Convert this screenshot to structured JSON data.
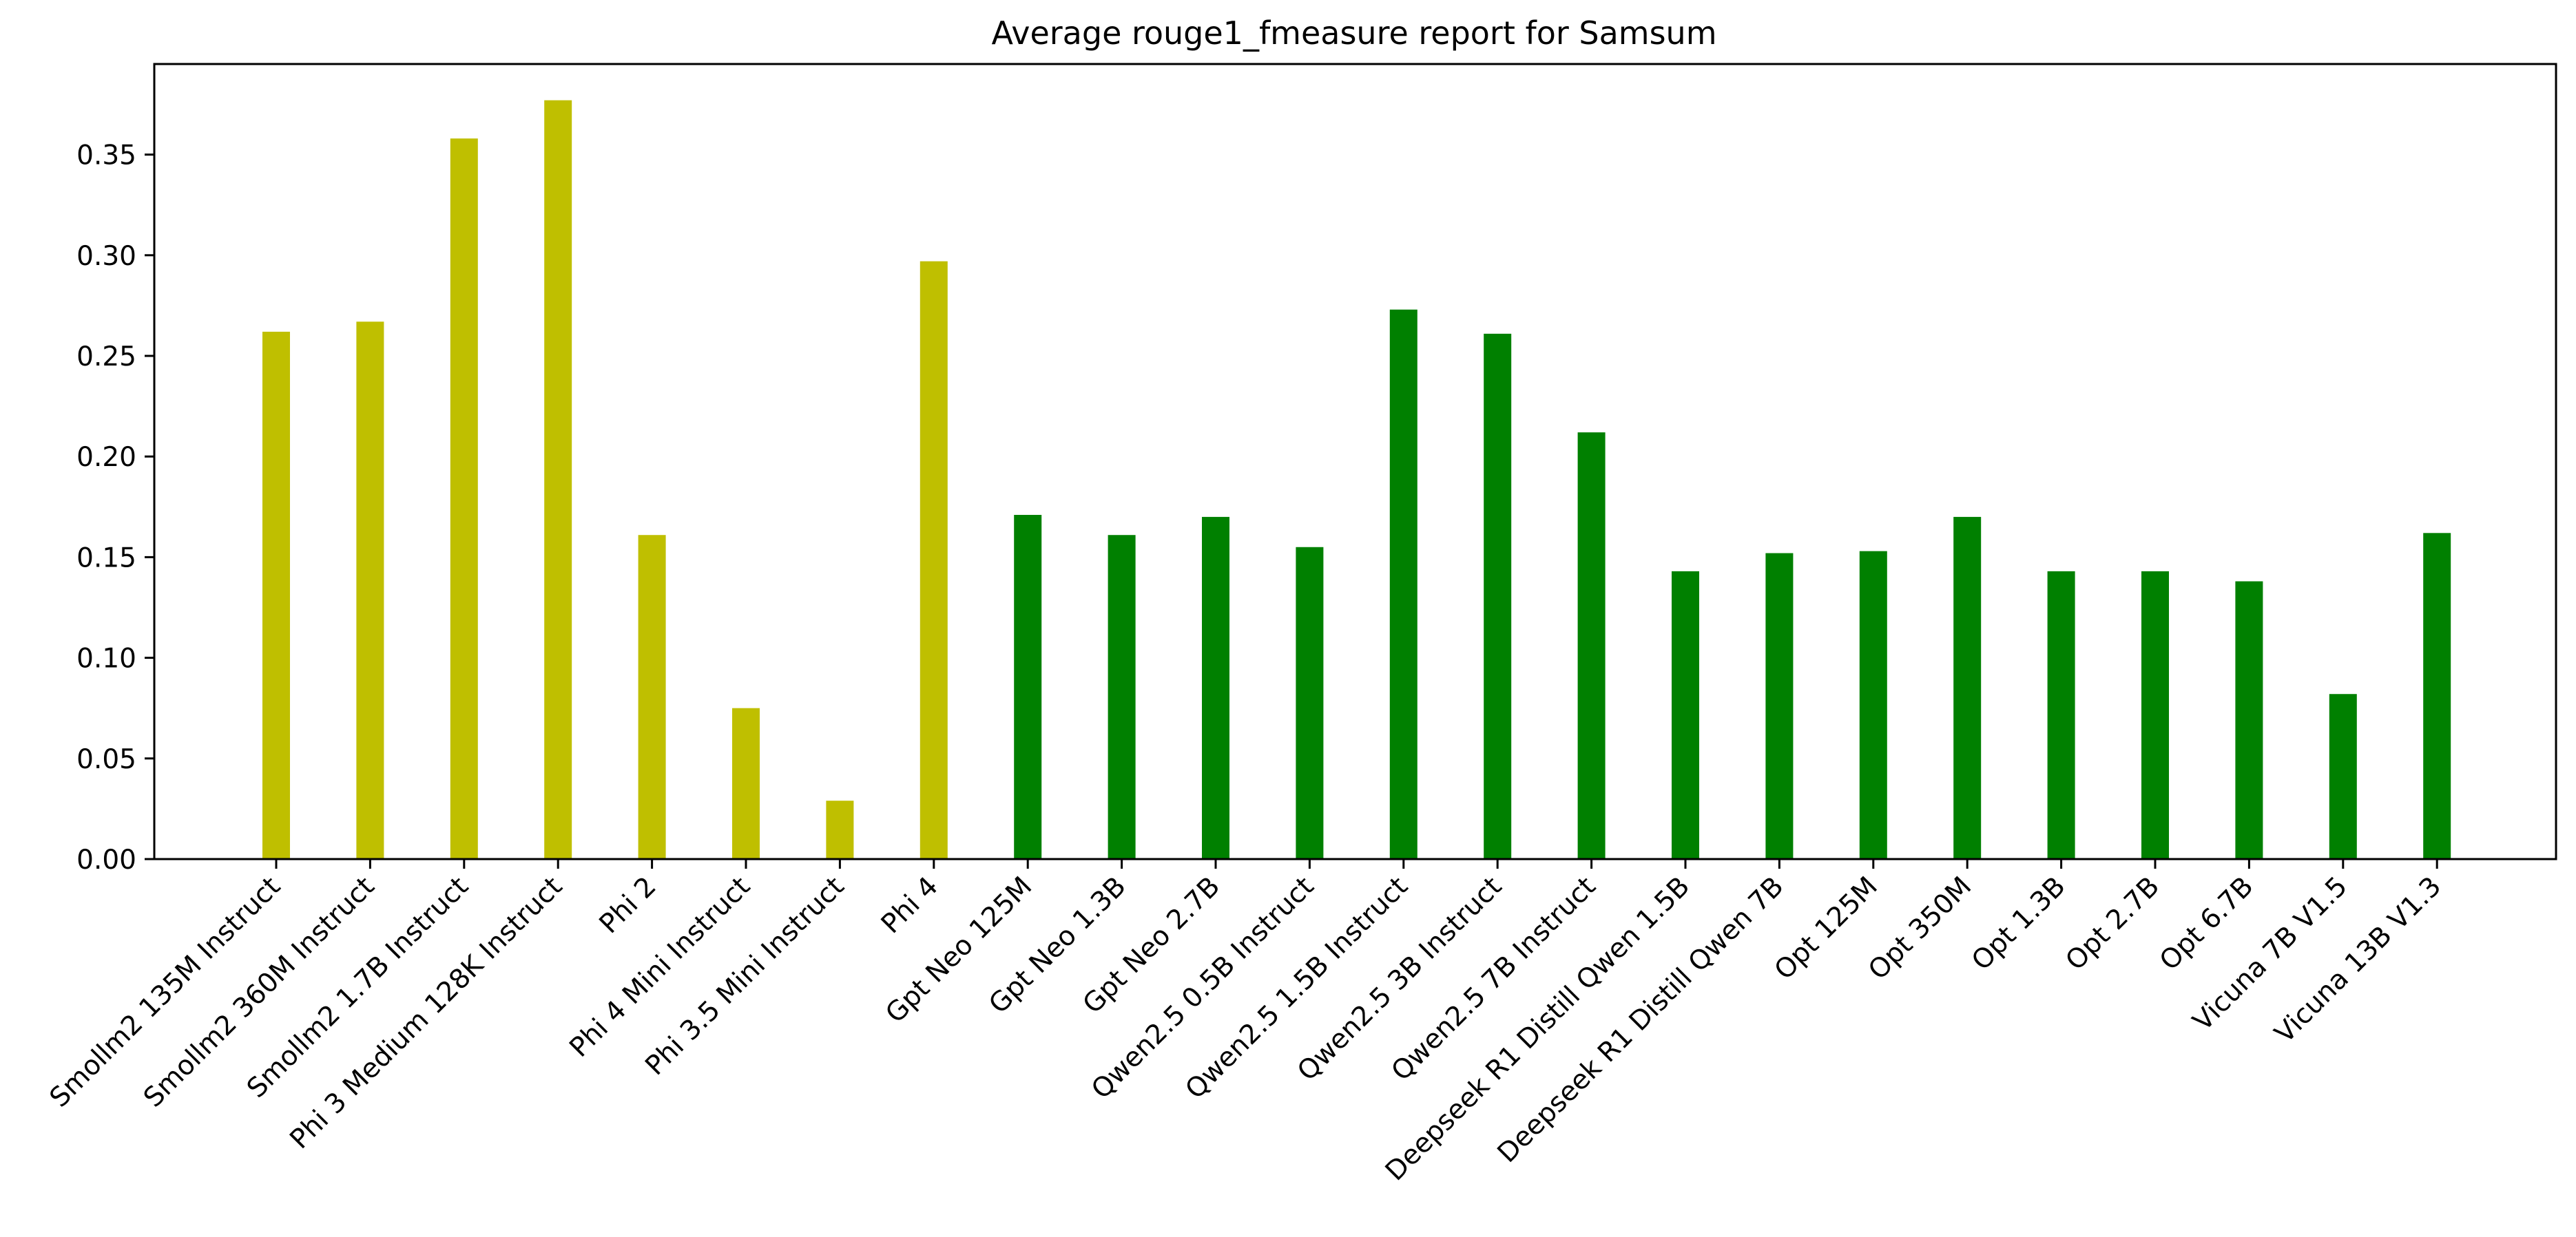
{
  "chart_data": {
    "type": "bar",
    "title": "Average rouge1_fmeasure report for Samsum",
    "xlabel": "",
    "ylabel": "",
    "ylim": [
      0,
      0.395
    ],
    "yticks": [
      "0.00",
      "0.05",
      "0.10",
      "0.15",
      "0.20",
      "0.25",
      "0.30",
      "0.35"
    ],
    "grid": false,
    "colors": {
      "group_a": "#bfbf00",
      "group_b": "#008000"
    },
    "categories": [
      "Smollm2 135M Instruct",
      "Smollm2 360M Instruct",
      "Smollm2 1.7B Instruct",
      "Phi 3 Medium 128K Instruct",
      "Phi 2",
      "Phi 4 Mini Instruct",
      "Phi 3.5 Mini Instruct",
      "Phi 4",
      "Gpt Neo 125M",
      "Gpt Neo 1.3B",
      "Gpt Neo 2.7B",
      "Qwen2.5 0.5B Instruct",
      "Qwen2.5 1.5B Instruct",
      "Qwen2.5 3B Instruct",
      "Qwen2.5 7B Instruct",
      "Deepseek R1 Distill Qwen 1.5B",
      "Deepseek R1 Distill Qwen 7B",
      "Opt 125M",
      "Opt 350M",
      "Opt 1.3B",
      "Opt 2.7B",
      "Opt 6.7B",
      "Vicuna 7B V1.5",
      "Vicuna 13B V1.3"
    ],
    "values": [
      0.262,
      0.267,
      0.358,
      0.377,
      0.161,
      0.075,
      0.029,
      0.297,
      0.171,
      0.161,
      0.17,
      0.155,
      0.273,
      0.261,
      0.212,
      0.143,
      0.152,
      0.153,
      0.17,
      0.143,
      0.143,
      0.138,
      0.082,
      0.162
    ],
    "groups": [
      "a",
      "a",
      "a",
      "a",
      "a",
      "a",
      "a",
      "a",
      "b",
      "b",
      "b",
      "b",
      "b",
      "b",
      "b",
      "b",
      "b",
      "b",
      "b",
      "b",
      "b",
      "b",
      "b",
      "b"
    ]
  }
}
